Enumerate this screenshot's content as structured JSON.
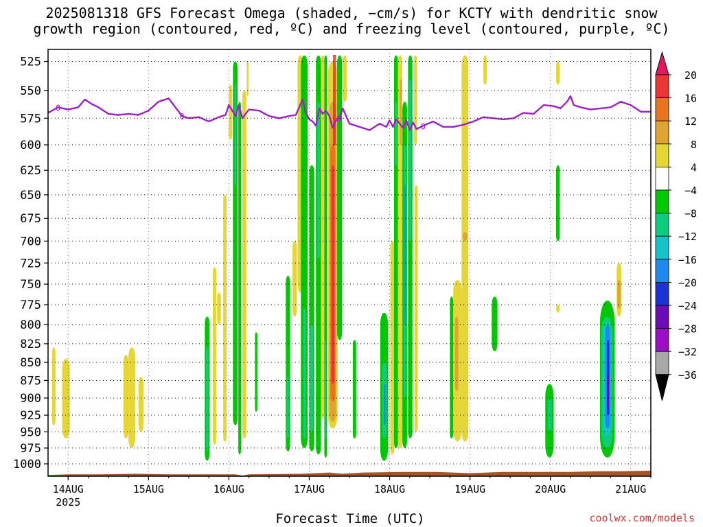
{
  "title": {
    "line1": "2025081318 GFS Forecast Omega (shaded, −cm/s) for KCTY with dendritic snow",
    "line2": "growth region (contoured, red, ºC) and freezing level (contoured, purple, ºC)"
  },
  "credit": "coolwx.com/models",
  "chart_data": {
    "type": "heatmap",
    "title": "2025081318 GFS Forecast Omega (shaded, −cm/s) for KCTY",
    "xlabel": "Forecast Time (UTC)",
    "ylabel": "",
    "x_tick_labels": [
      "14AUG",
      "15AUG",
      "16AUG",
      "17AUG",
      "18AUG",
      "19AUG",
      "20AUG",
      "21AUG"
    ],
    "x_tick_hours": [
      0,
      24,
      48,
      72,
      96,
      120,
      144,
      168
    ],
    "x_sublabel": "2025",
    "xlim_hours": [
      -6,
      174
    ],
    "y_tick_labels": [
      "525",
      "550",
      "575",
      "600",
      "625",
      "650",
      "675",
      "700",
      "725",
      "750",
      "775",
      "800",
      "825",
      "850",
      "875",
      "900",
      "925",
      "950",
      "975",
      "1000"
    ],
    "ylim_hpa": [
      1020,
      515
    ],
    "grid": true,
    "colorbar": {
      "labels": [
        "20",
        "16",
        "12",
        "8",
        "4",
        "−4",
        "−8",
        "−12",
        "−16",
        "−20",
        "−24",
        "−28",
        "−32",
        "−36"
      ],
      "colors": [
        "#e4185e",
        "#ee3535",
        "#e8751e",
        "#e0a530",
        "#e6d635",
        "#ffffff",
        "#00c800",
        "#0ccc7e",
        "#16c3c8",
        "#1c8aee",
        "#1b32d8",
        "#6a0db9",
        "#9d0fc4",
        "#a8a8a8",
        "#000000"
      ]
    },
    "omega_patches": [
      {
        "h0": -4.8,
        "h1": -3.8,
        "p0": 830,
        "p1": 940,
        "color": "#e6d635"
      },
      {
        "h0": -1.8,
        "h1": 0.5,
        "p0": 845,
        "p1": 960,
        "color": "#e6d635"
      },
      {
        "h0": 16.5,
        "h1": 18.0,
        "p0": 840,
        "p1": 960,
        "color": "#e6d635"
      },
      {
        "h0": 18.0,
        "h1": 20.0,
        "p0": 830,
        "p1": 975,
        "color": "#e6d635"
      },
      {
        "h0": 21.0,
        "h1": 22.5,
        "p0": 870,
        "p1": 950,
        "color": "#e6d635"
      },
      {
        "h0": 40.8,
        "h1": 42.2,
        "p0": 790,
        "p1": 995,
        "color": "#00c800"
      },
      {
        "h0": 41.2,
        "h1": 41.9,
        "p0": 830,
        "p1": 980,
        "color": "#0ccc7e"
      },
      {
        "h0": 43.2,
        "h1": 44.2,
        "p0": 730,
        "p1": 970,
        "color": "#e6d635"
      },
      {
        "h0": 44.5,
        "h1": 45.6,
        "p0": 760,
        "p1": 800,
        "color": "#e6d635"
      },
      {
        "h0": 46.3,
        "h1": 47.3,
        "p0": 650,
        "p1": 965,
        "color": "#e6d635"
      },
      {
        "h0": 48.0,
        "h1": 49.0,
        "p0": 545,
        "p1": 595,
        "color": "#e6d635"
      },
      {
        "h0": 49.2,
        "h1": 50.6,
        "p0": 525,
        "p1": 940,
        "color": "#00c800"
      },
      {
        "h0": 49.7,
        "h1": 50.1,
        "p0": 545,
        "p1": 640,
        "color": "#16c3c8"
      },
      {
        "h0": 50.8,
        "h1": 51.6,
        "p0": 560,
        "p1": 985,
        "color": "#00c800"
      },
      {
        "h0": 52.0,
        "h1": 53.2,
        "p0": 550,
        "p1": 960,
        "color": "#e6d635"
      },
      {
        "h0": 53.3,
        "h1": 53.9,
        "p0": 525,
        "p1": 555,
        "color": "#e6d635"
      },
      {
        "h0": 55.8,
        "h1": 56.5,
        "p0": 810,
        "p1": 920,
        "color": "#00c800"
      },
      {
        "h0": 65.0,
        "h1": 66.3,
        "p0": 740,
        "p1": 980,
        "color": "#00c800"
      },
      {
        "h0": 65.3,
        "h1": 65.9,
        "p0": 870,
        "p1": 960,
        "color": "#0ccc7e"
      },
      {
        "h0": 67.0,
        "h1": 68.3,
        "p0": 700,
        "p1": 790,
        "color": "#e6d635"
      },
      {
        "h0": 68.5,
        "h1": 70.2,
        "p0": 520,
        "p1": 760,
        "color": "#e6d635"
      },
      {
        "h0": 69.5,
        "h1": 71.5,
        "p0": 520,
        "p1": 975,
        "color": "#00c800"
      },
      {
        "h0": 70.2,
        "h1": 71.0,
        "p0": 780,
        "p1": 960,
        "color": "#0ccc7e"
      },
      {
        "h0": 72.0,
        "h1": 73.5,
        "p0": 620,
        "p1": 980,
        "color": "#00c800"
      },
      {
        "h0": 72.3,
        "h1": 73.2,
        "p0": 800,
        "p1": 950,
        "color": "#0ccc7e"
      },
      {
        "h0": 74.0,
        "h1": 75.5,
        "p0": 520,
        "p1": 985,
        "color": "#00c800"
      },
      {
        "h0": 74.4,
        "h1": 75.2,
        "p0": 560,
        "p1": 720,
        "color": "#0ccc7e"
      },
      {
        "h0": 75.5,
        "h1": 76.5,
        "p0": 520,
        "p1": 930,
        "color": "#e6d635"
      },
      {
        "h0": 76.5,
        "h1": 77.3,
        "p0": 520,
        "p1": 990,
        "color": "#00c800"
      },
      {
        "h0": 76.7,
        "h1": 77.1,
        "p0": 820,
        "p1": 960,
        "color": "#0ccc7e"
      },
      {
        "h0": 77.5,
        "h1": 80.5,
        "p0": 525,
        "p1": 945,
        "color": "#e6d635"
      },
      {
        "h0": 78.0,
        "h1": 80.0,
        "p0": 560,
        "p1": 935,
        "color": "#e0a530"
      },
      {
        "h0": 78.3,
        "h1": 79.8,
        "p0": 600,
        "p1": 905,
        "color": "#e8751e"
      },
      {
        "h0": 78.6,
        "h1": 79.5,
        "p0": 620,
        "p1": 880,
        "color": "#ee3535"
      },
      {
        "h0": 80.3,
        "h1": 81.8,
        "p0": 520,
        "p1": 820,
        "color": "#00c800"
      },
      {
        "h0": 82.0,
        "h1": 83.2,
        "p0": 520,
        "p1": 560,
        "color": "#e6d635"
      },
      {
        "h0": 85.0,
        "h1": 86.0,
        "p0": 820,
        "p1": 960,
        "color": "#00c800"
      },
      {
        "h0": 93.2,
        "h1": 95.5,
        "p0": 785,
        "p1": 995,
        "color": "#00c800"
      },
      {
        "h0": 93.8,
        "h1": 95.1,
        "p0": 850,
        "p1": 960,
        "color": "#0ccc7e"
      },
      {
        "h0": 94.2,
        "h1": 94.8,
        "p0": 880,
        "p1": 940,
        "color": "#1c8aee"
      },
      {
        "h0": 96.2,
        "h1": 97.4,
        "p0": 700,
        "p1": 985,
        "color": "#e6d635"
      },
      {
        "h0": 97.3,
        "h1": 98.5,
        "p0": 520,
        "p1": 975,
        "color": "#00c800"
      },
      {
        "h0": 97.6,
        "h1": 98.2,
        "p0": 560,
        "p1": 620,
        "color": "#0ccc7e"
      },
      {
        "h0": 98.5,
        "h1": 99.8,
        "p0": 520,
        "p1": 975,
        "color": "#e6d635"
      },
      {
        "h0": 99.0,
        "h1": 99.6,
        "p0": 540,
        "p1": 600,
        "color": "#e0a530"
      },
      {
        "h0": 99.8,
        "h1": 101.2,
        "p0": 560,
        "p1": 975,
        "color": "#00c800"
      },
      {
        "h0": 100.2,
        "h1": 100.9,
        "p0": 600,
        "p1": 900,
        "color": "#0ccc7e"
      },
      {
        "h0": 100.4,
        "h1": 100.7,
        "p0": 640,
        "p1": 800,
        "color": "#1c8aee"
      },
      {
        "h0": 101.5,
        "h1": 102.8,
        "p0": 520,
        "p1": 960,
        "color": "#00c800"
      },
      {
        "h0": 101.8,
        "h1": 102.5,
        "p0": 540,
        "p1": 700,
        "color": "#0ccc7e"
      },
      {
        "h0": 103.3,
        "h1": 104.2,
        "p0": 520,
        "p1": 600,
        "color": "#e6d635"
      },
      {
        "h0": 103.5,
        "h1": 104.4,
        "p0": 640,
        "p1": 950,
        "color": "#e6d635"
      },
      {
        "h0": 114.0,
        "h1": 115.0,
        "p0": 765,
        "p1": 960,
        "color": "#00c800"
      },
      {
        "h0": 115.0,
        "h1": 117.5,
        "p0": 745,
        "p1": 965,
        "color": "#e6d635"
      },
      {
        "h0": 115.5,
        "h1": 116.5,
        "p0": 790,
        "p1": 890,
        "color": "#e0a530"
      },
      {
        "h0": 117.5,
        "h1": 119.5,
        "p0": 520,
        "p1": 965,
        "color": "#e6d635"
      },
      {
        "h0": 117.8,
        "h1": 119.2,
        "p0": 690,
        "p1": 700,
        "color": "#e0a530"
      },
      {
        "h0": 124.0,
        "h1": 125.0,
        "p0": 520,
        "p1": 545,
        "color": "#e6d635"
      },
      {
        "h0": 126.5,
        "h1": 128.2,
        "p0": 765,
        "p1": 835,
        "color": "#00c800"
      },
      {
        "h0": 142.5,
        "h1": 145.0,
        "p0": 880,
        "p1": 990,
        "color": "#00c800"
      },
      {
        "h0": 143.2,
        "h1": 144.4,
        "p0": 900,
        "p1": 950,
        "color": "#0ccc7e"
      },
      {
        "h0": 145.7,
        "h1": 146.8,
        "p0": 525,
        "p1": 545,
        "color": "#e6d635"
      },
      {
        "h0": 145.7,
        "h1": 146.8,
        "p0": 620,
        "p1": 700,
        "color": "#00c800"
      },
      {
        "h0": 145.7,
        "h1": 146.8,
        "p0": 775,
        "p1": 785,
        "color": "#e6d635"
      },
      {
        "h0": 158.8,
        "h1": 163.2,
        "p0": 770,
        "p1": 990,
        "color": "#00c800"
      },
      {
        "h0": 159.2,
        "h1": 162.6,
        "p0": 790,
        "p1": 975,
        "color": "#0ccc7e"
      },
      {
        "h0": 159.8,
        "h1": 162.0,
        "p0": 800,
        "p1": 955,
        "color": "#16c3c8"
      },
      {
        "h0": 160.4,
        "h1": 161.8,
        "p0": 800,
        "p1": 945,
        "color": "#1c8aee"
      },
      {
        "h0": 160.9,
        "h1": 161.6,
        "p0": 820,
        "p1": 925,
        "color": "#1b32d8"
      },
      {
        "h0": 161.0,
        "h1": 161.5,
        "p0": 865,
        "p1": 915,
        "color": "#6a0db9"
      },
      {
        "h0": 163.8,
        "h1": 165.2,
        "p0": 725,
        "p1": 790,
        "color": "#e6d635"
      },
      {
        "h0": 164.0,
        "h1": 165.0,
        "p0": 745,
        "p1": 780,
        "color": "#e0a530"
      }
    ],
    "freezing_level_series": {
      "name": "",
      "color": "#9e1fc8",
      "label": "0",
      "hours": [
        -6,
        -3,
        0,
        3,
        5,
        7,
        9,
        12,
        15,
        18,
        21,
        24,
        27,
        30,
        32,
        34,
        36,
        39,
        42,
        45,
        47,
        48,
        49,
        50,
        51,
        52,
        54,
        57,
        60,
        63,
        66,
        68,
        69,
        70,
        71,
        72,
        73,
        74,
        75,
        76,
        77,
        78,
        79,
        80,
        81,
        82,
        84,
        87,
        90,
        93,
        95,
        96,
        97,
        98,
        99,
        100,
        101,
        102,
        103,
        104,
        106,
        109,
        112,
        115,
        118,
        121,
        124,
        127,
        130,
        133,
        136,
        139,
        142,
        145,
        147,
        149,
        150,
        151,
        153,
        156,
        159,
        162,
        165,
        168,
        171,
        174
      ],
      "values": [
        570,
        565,
        567,
        565,
        558,
        562,
        565,
        571,
        572,
        571,
        572,
        568,
        560,
        557,
        565,
        573,
        575,
        574,
        578,
        574,
        572,
        563,
        568,
        573,
        563,
        575,
        567,
        568,
        573,
        575,
        573,
        572,
        565,
        558,
        570,
        576,
        578,
        582,
        566,
        571,
        568,
        573,
        584,
        577,
        575,
        566,
        580,
        583,
        586,
        580,
        583,
        577,
        583,
        576,
        580,
        584,
        577,
        586,
        579,
        585,
        582,
        578,
        583,
        583,
        581,
        578,
        574,
        575,
        576,
        575,
        570,
        571,
        563,
        564,
        566,
        560,
        555,
        563,
        565,
        567,
        566,
        565,
        560,
        563,
        569,
        569
      ]
    },
    "dgz_contours": [
      {
        "h0": 79.3,
        "h1": 79.7,
        "p0": 520,
        "p1": 600,
        "color": "#e02020"
      }
    ]
  }
}
